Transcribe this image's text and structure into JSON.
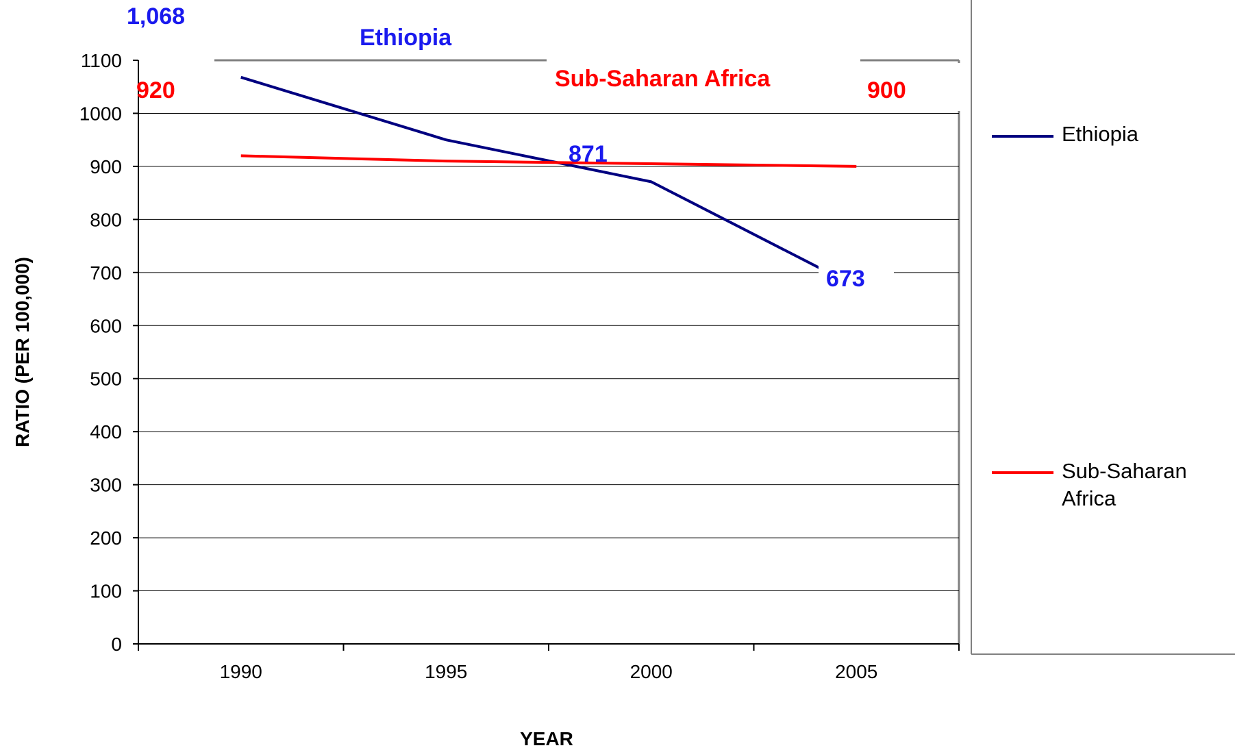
{
  "chart_data": {
    "type": "line",
    "categories": [
      "1990",
      "1995",
      "2000",
      "2005"
    ],
    "series": [
      {
        "name": "Ethiopia",
        "values": [
          1068,
          950,
          871,
          673
        ],
        "color": "#000080"
      },
      {
        "name": "Sub-Saharan Africa",
        "values": [
          920,
          910,
          905,
          900
        ],
        "color": "#ff0000"
      }
    ],
    "xlabel": "YEAR",
    "ylabel": "RATIO (PER 100,000)",
    "ylim": [
      0,
      1100
    ],
    "yticks": [
      "0",
      "100",
      "200",
      "300",
      "400",
      "500",
      "600",
      "700",
      "800",
      "900",
      "1000",
      "1100"
    ],
    "grid": true,
    "legend_position": "right",
    "legend": [
      "Ethiopia",
      "Sub-Saharan Africa"
    ],
    "annotations": [
      {
        "text": "1,068",
        "color": "#1a1aee"
      },
      {
        "text": "Ethiopia",
        "color": "#1a1aee"
      },
      {
        "text": "920",
        "color": "#ff0000"
      },
      {
        "text": "Sub-Saharan Africa",
        "color": "#ff0000"
      },
      {
        "text": "900",
        "color": "#ff0000"
      },
      {
        "text": "871",
        "color": "#1a1aee"
      },
      {
        "text": "673",
        "color": "#1a1aee"
      }
    ]
  }
}
